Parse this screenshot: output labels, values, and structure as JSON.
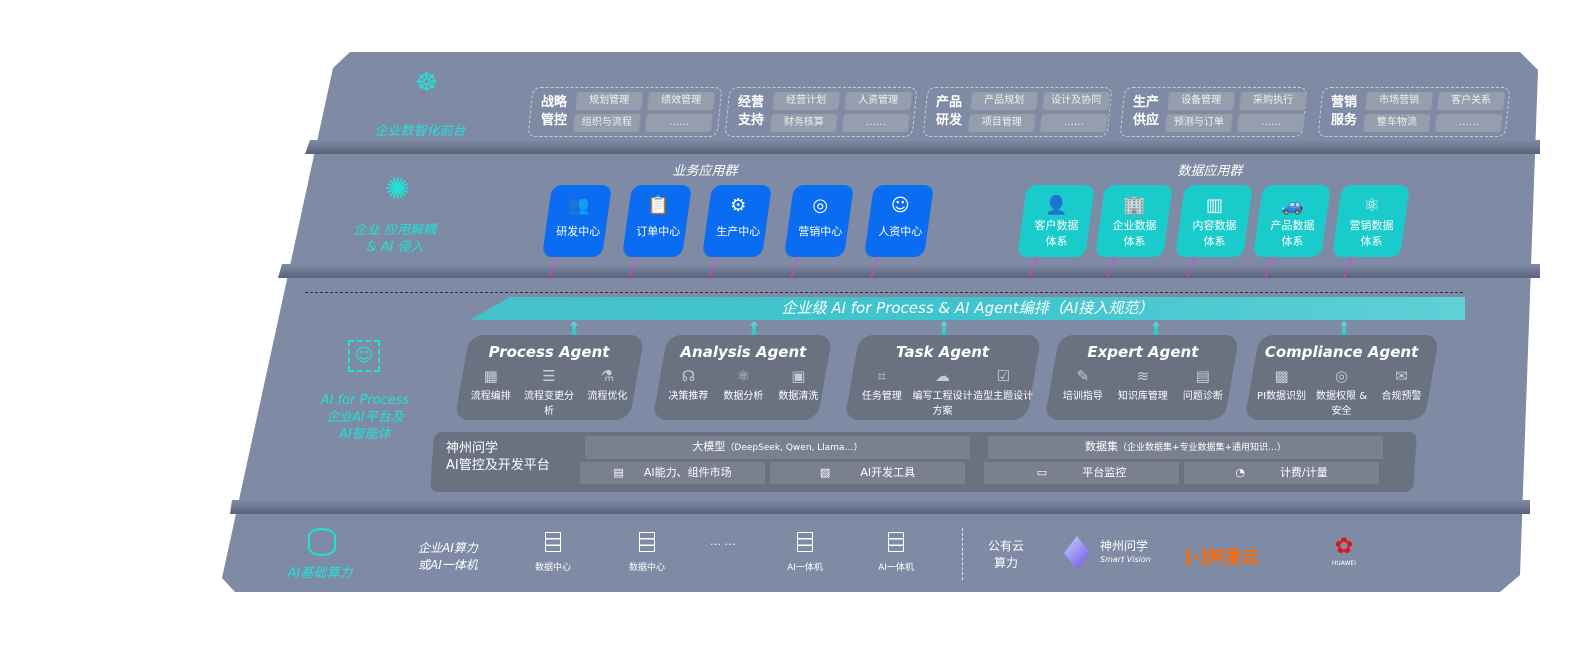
{
  "layers": {
    "front": {
      "label": "企业数智化前台",
      "icon": "brain-icon"
    },
    "apps": {
      "label_line1": "企业 应用解耦",
      "label_line2": "& AI 侵入",
      "icon": "molecule-icon"
    },
    "platform": {
      "label_line1": "AI for Process",
      "label_line2": "企业AI平台及",
      "label_line3": "AI智能体",
      "icon": "face-scan-icon"
    },
    "compute": {
      "label": "AI基础算力",
      "icon": "database-icon"
    }
  },
  "front_groups": [
    {
      "title1": "战略",
      "title2": "管控",
      "items": [
        "规划管理",
        "绩效管理",
        "组织与流程",
        "……"
      ]
    },
    {
      "title1": "经营",
      "title2": "支持",
      "items": [
        "经营计划",
        "人资管理",
        "财务核算",
        "……"
      ]
    },
    {
      "title1": "产品",
      "title2": "研发",
      "items": [
        "产品规划",
        "设计及协同",
        "项目管理",
        "……"
      ]
    },
    {
      "title1": "生产",
      "title2": "供应",
      "items": [
        "设备管理",
        "采购执行",
        "预测与订单",
        "……"
      ]
    },
    {
      "title1": "营销",
      "title2": "服务",
      "items": [
        "市场营销",
        "客户关系",
        "整车物流",
        "……"
      ]
    }
  ],
  "business_apps": {
    "title": "业务应用群",
    "color": "#0a6cf0",
    "items": [
      {
        "label": "研发中心",
        "icon": "users-icon"
      },
      {
        "label": "订单中心",
        "icon": "clipboard-icon"
      },
      {
        "label": "生产中心",
        "icon": "production-icon"
      },
      {
        "label": "营销中心",
        "icon": "target-icon"
      },
      {
        "label": "人资中心",
        "icon": "person-icon"
      }
    ]
  },
  "data_apps": {
    "title": "数据应用群",
    "color": "#19cccb",
    "items": [
      {
        "l1": "客户数据",
        "l2": "体系",
        "icon": "user-icon"
      },
      {
        "l1": "企业数据",
        "l2": "体系",
        "icon": "building-icon"
      },
      {
        "l1": "内容数据",
        "l2": "体系",
        "icon": "books-icon"
      },
      {
        "l1": "产品数据",
        "l2": "体系",
        "icon": "car-icon"
      },
      {
        "l1": "营销数据",
        "l2": "体系",
        "icon": "atom-icon"
      }
    ]
  },
  "banner": "企业级 AI for Process & AI Agent编排（AI接入规范）",
  "agents": [
    {
      "name": "Process Agent",
      "items": [
        "流程编排",
        "流程变更分析",
        "流程优化"
      ]
    },
    {
      "name": "Analysis Agent",
      "items": [
        "决策推荐",
        "数据分析",
        "数据清洗"
      ]
    },
    {
      "name": "Task Agent",
      "items": [
        "任务管理",
        "编写工程设计方案",
        "造型主题设计"
      ]
    },
    {
      "name": "Expert Agent",
      "items": [
        "培训指导",
        "知识库管理",
        "问题诊断"
      ]
    },
    {
      "name": "Compliance Agent",
      "items": [
        "PI数据识别",
        "数据权限 & 安全",
        "合规预警"
      ]
    }
  ],
  "dev_platform": {
    "title1": "神州问学",
    "title2": "AI管控及开发平台",
    "model": "大模型",
    "model_note": "（DeepSeek, Qwen, Llama…）",
    "dataset": "数据集",
    "dataset_note": "（企业数据集+专业数据集+通用知识…）",
    "tools": [
      "AI能力、组件市场",
      "AI开发工具",
      "平台监控",
      "计费/计量"
    ]
  },
  "compute": {
    "private_l1": "企业AI算力",
    "private_l2": "或AI一体机",
    "servers": [
      "数据中心",
      "数据中心",
      "AI一体机",
      "AI一体机"
    ],
    "ellipsis": "… …",
    "public_l1": "公有云",
    "public_l2": "算力",
    "vendors": {
      "smartvision": "神州问学",
      "smartvision_sub": "Smart Vision",
      "aliyun": "阿里云",
      "huawei": "HUAWEI"
    }
  }
}
